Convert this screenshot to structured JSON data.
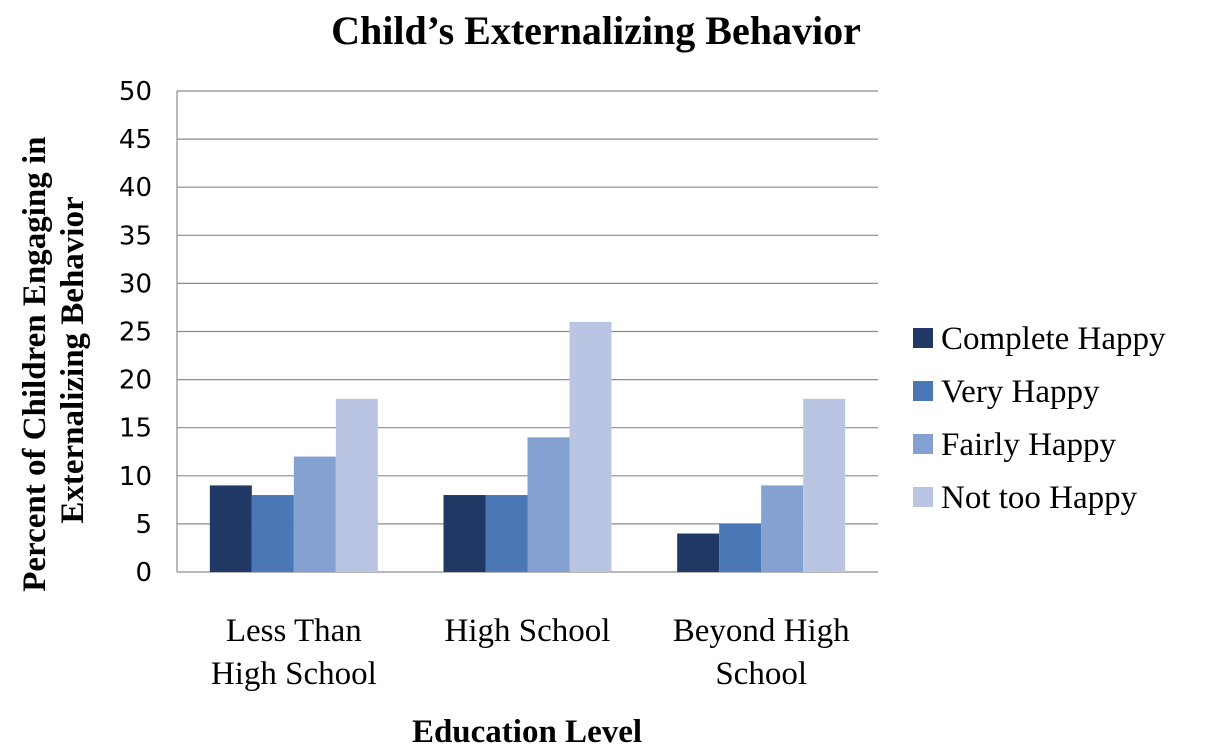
{
  "chart_data": {
    "type": "bar",
    "title": "Child’s Externalizing Behavior",
    "xlabel": "Education Level",
    "ylabel_lines": [
      "Percent of Children Engaging in",
      "Externalizing Behavior"
    ],
    "categories": [
      [
        "Less Than",
        "High School"
      ],
      [
        "High School"
      ],
      [
        "Beyond High",
        "School"
      ]
    ],
    "series": [
      {
        "name": "Complete Happy",
        "color": "#1f3864",
        "values": [
          9,
          8,
          4
        ]
      },
      {
        "name": "Very Happy",
        "color": "#4a78b7",
        "values": [
          8,
          8,
          5
        ]
      },
      {
        "name": "Fairly Happy",
        "color": "#84a1d2",
        "values": [
          12,
          14,
          9
        ]
      },
      {
        "name": "Not too Happy",
        "color": "#b9c5e3",
        "values": [
          18,
          26,
          18
        ]
      }
    ],
    "ylim": [
      0,
      50
    ],
    "yticks": [
      0,
      5,
      10,
      15,
      20,
      25,
      30,
      35,
      40,
      45,
      50
    ],
    "grid": true,
    "gridline_color": "#8c8c8c",
    "legend_position": "right"
  }
}
